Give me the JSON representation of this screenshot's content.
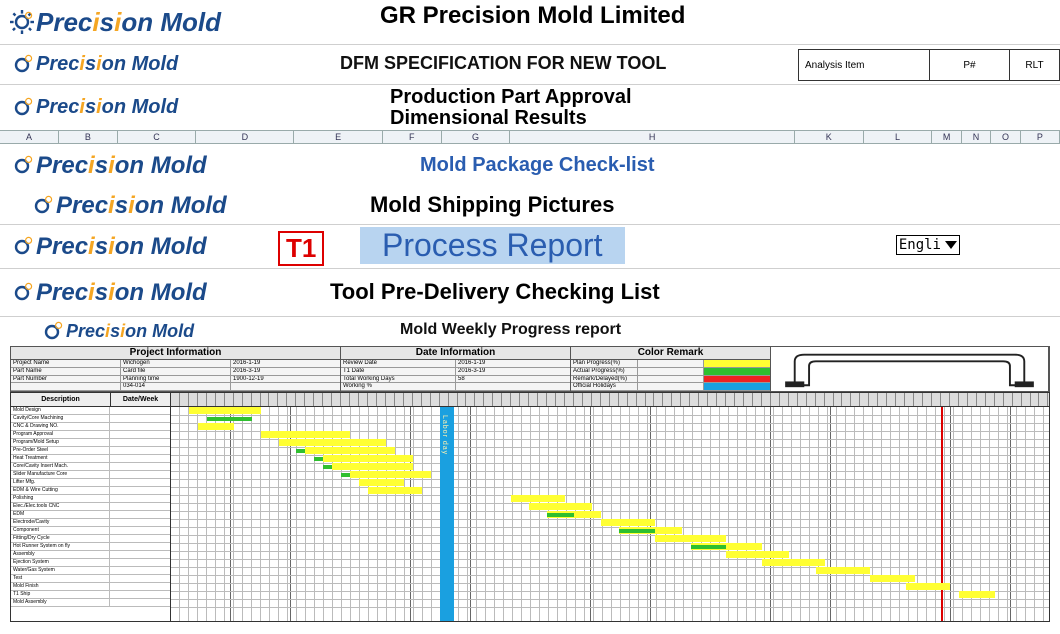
{
  "brand": {
    "name_html": "Prec<span class='i-accent'>i</span>s<span class='i-accent'>i</span>on Mold",
    "gr": "GR"
  },
  "rows": {
    "r1": "GR Precision Mold Limited",
    "r2": "DFM SPECIFICATION FOR NEW TOOL",
    "r2_cells": {
      "a": "Analysis Item",
      "b": "P#",
      "c": "RLT"
    },
    "r3a": "Production Part Approval",
    "r3b": "Dimensional Results",
    "r4": "Mold Package Check-list",
    "r5": "Mold Shipping Pictures",
    "r6_t1": "T1",
    "r6": "Process Report",
    "r6_lang": "Engli",
    "r7": "Tool Pre-Delivery Checking List",
    "r8": "Mold Weekly Progress report"
  },
  "colhdr": [
    "A",
    "B",
    "C",
    "D",
    "E",
    "F",
    "G",
    "H",
    "K",
    "L",
    "M",
    "N",
    "O",
    "P"
  ],
  "colhdr_widths": [
    60,
    60,
    80,
    100,
    90,
    60,
    70,
    290,
    70,
    70,
    30,
    30,
    30,
    40
  ],
  "info": {
    "gA": {
      "title": "Project Information",
      "rows": [
        [
          "Project Name",
          "Wichogen",
          "2016-1-19"
        ],
        [
          "Part Name",
          "Card file",
          "2016-3-19"
        ],
        [
          "Part Number",
          "Planning time",
          "1900-12-19"
        ],
        [
          "",
          "034-014",
          ""
        ]
      ]
    },
    "gB": {
      "title": "Date Information",
      "rows": [
        [
          "Review Date",
          "2016-1-19"
        ],
        [
          "T1 Date",
          "2016-3-19"
        ],
        [
          "Total Working Days",
          "58"
        ],
        [
          "Working %",
          ""
        ]
      ]
    },
    "gC": {
      "title": "Color Remark",
      "rows": [
        [
          "Plan Progress(%)",
          ""
        ],
        [
          "Actual Progress(%)",
          ""
        ],
        [
          "Remark/Delayed(%)",
          ""
        ],
        [
          "Official Holidays",
          ""
        ]
      ]
    },
    "colors": {
      "plan": "#ffff33",
      "actual": "#2fbf2f",
      "delay": "#e22",
      "holiday": "#1aa0e0"
    }
  },
  "gantt": {
    "left_header": [
      "Description",
      "Date/Week"
    ],
    "n_rows": 25,
    "n_day_cols": 98,
    "group_every": 7,
    "holiday_col": 30,
    "holiday_label": "Labor day",
    "today_col": 86,
    "tasks": [
      {
        "r": 0,
        "label": "Mold Design"
      },
      {
        "r": 1,
        "label": "Cavity/Core Machining"
      },
      {
        "r": 2,
        "label": "CNC & Drawing NO."
      },
      {
        "r": 3,
        "label": "Program Approval"
      },
      {
        "r": 4,
        "label": "Program/Mold Setup"
      },
      {
        "r": 5,
        "label": "Pre-Order Steel"
      },
      {
        "r": 6,
        "label": "Heat Treatment"
      },
      {
        "r": 7,
        "label": "Core/Cavity Insert Mach."
      },
      {
        "r": 8,
        "label": "Slider Manufacture Core"
      },
      {
        "r": 9,
        "label": "Lifter Mfg."
      },
      {
        "r": 10,
        "label": "EDM & Wire Cutting"
      },
      {
        "r": 11,
        "label": "Polishing"
      },
      {
        "r": 12,
        "label": "Elec./Elec.tools CNC"
      },
      {
        "r": 13,
        "label": "EDM"
      },
      {
        "r": 14,
        "label": "Electrode/Cavity"
      },
      {
        "r": 15,
        "label": "Component"
      },
      {
        "r": 16,
        "label": "Fitting/Dry Cycle"
      },
      {
        "r": 17,
        "label": "Hot Runner System on fly"
      },
      {
        "r": 18,
        "label": "Assembly"
      },
      {
        "r": 19,
        "label": "Ejection System"
      },
      {
        "r": 20,
        "label": "Water/Gas System"
      },
      {
        "r": 21,
        "label": "Test"
      },
      {
        "r": 22,
        "label": "Mold Finish"
      },
      {
        "r": 23,
        "label": "T1 Ship"
      },
      {
        "r": 24,
        "label": "Mold Assembly"
      }
    ],
    "bars": [
      {
        "r": 0,
        "c": 2,
        "w": 6,
        "k": "actual"
      },
      {
        "r": 0,
        "c": 2,
        "w": 8,
        "k": "plan"
      },
      {
        "r": 1,
        "c": 4,
        "w": 5,
        "k": "actual"
      },
      {
        "r": 2,
        "c": 3,
        "w": 4,
        "k": "plan"
      },
      {
        "r": 3,
        "c": 10,
        "w": 7,
        "k": "actual"
      },
      {
        "r": 3,
        "c": 10,
        "w": 10,
        "k": "plan"
      },
      {
        "r": 4,
        "c": 12,
        "w": 9,
        "k": "actual"
      },
      {
        "r": 4,
        "c": 12,
        "w": 12,
        "k": "plan"
      },
      {
        "r": 5,
        "c": 14,
        "w": 8,
        "k": "actual"
      },
      {
        "r": 5,
        "c": 15,
        "w": 10,
        "k": "plan"
      },
      {
        "r": 6,
        "c": 16,
        "w": 8,
        "k": "actual"
      },
      {
        "r": 6,
        "c": 17,
        "w": 10,
        "k": "plan"
      },
      {
        "r": 7,
        "c": 17,
        "w": 6,
        "k": "actual"
      },
      {
        "r": 7,
        "c": 18,
        "w": 9,
        "k": "plan"
      },
      {
        "r": 8,
        "c": 19,
        "w": 7,
        "k": "actual"
      },
      {
        "r": 8,
        "c": 20,
        "w": 9,
        "k": "plan"
      },
      {
        "r": 9,
        "c": 21,
        "w": 5,
        "k": "plan"
      },
      {
        "r": 10,
        "c": 22,
        "w": 6,
        "k": "plan"
      },
      {
        "r": 11,
        "c": 38,
        "w": 6,
        "k": "plan"
      },
      {
        "r": 12,
        "c": 40,
        "w": 7,
        "k": "plan"
      },
      {
        "r": 13,
        "c": 42,
        "w": 6,
        "k": "plan"
      },
      {
        "r": 13,
        "c": 42,
        "w": 3,
        "k": "actual"
      },
      {
        "r": 14,
        "c": 48,
        "w": 6,
        "k": "plan"
      },
      {
        "r": 15,
        "c": 50,
        "w": 7,
        "k": "plan"
      },
      {
        "r": 15,
        "c": 50,
        "w": 4,
        "k": "actual"
      },
      {
        "r": 16,
        "c": 54,
        "w": 8,
        "k": "plan"
      },
      {
        "r": 17,
        "c": 58,
        "w": 8,
        "k": "plan"
      },
      {
        "r": 17,
        "c": 58,
        "w": 4,
        "k": "actual"
      },
      {
        "r": 18,
        "c": 62,
        "w": 7,
        "k": "plan"
      },
      {
        "r": 19,
        "c": 66,
        "w": 7,
        "k": "plan"
      },
      {
        "r": 20,
        "c": 72,
        "w": 6,
        "k": "plan"
      },
      {
        "r": 21,
        "c": 78,
        "w": 5,
        "k": "plan"
      },
      {
        "r": 22,
        "c": 82,
        "w": 5,
        "k": "plan"
      },
      {
        "r": 23,
        "c": 88,
        "w": 4,
        "k": "plan"
      }
    ]
  },
  "style": {
    "brand_blue": "#1b4a8a",
    "brand_orange": "#f5a623",
    "link_blue": "#2a5db0",
    "hl_bg": "#b8d4f0"
  }
}
